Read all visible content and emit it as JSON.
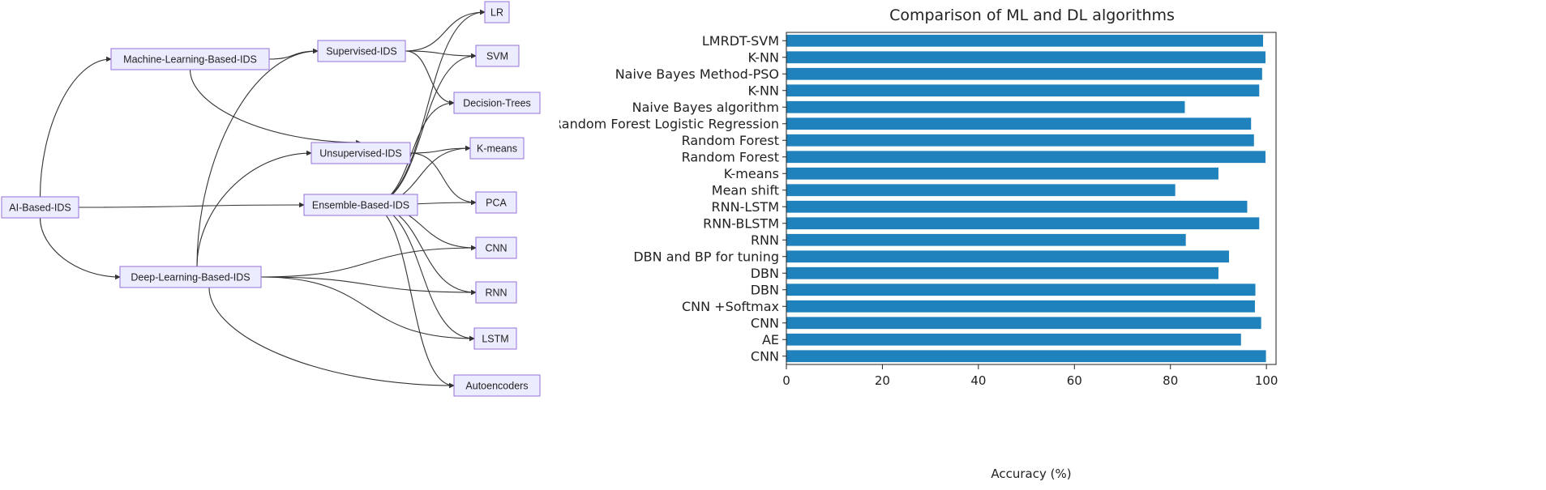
{
  "diagram": {
    "nodes": {
      "ai": "AI-Based-IDS",
      "ml": "Machine-Learning-Based-IDS",
      "dl": "Deep-Learning-Based-IDS",
      "sup": "Supervised-IDS",
      "unsup": "Unsupervised-IDS",
      "ens": "Ensemble-Based-IDS",
      "lr": "LR",
      "svm": "SVM",
      "dt": "Decision-Trees",
      "km": "K-means",
      "pca": "PCA",
      "cnn": "CNN",
      "rnn": "RNN",
      "lstm": "LSTM",
      "ae": "Autoencoders"
    },
    "edges": [
      [
        "ai",
        "ml"
      ],
      [
        "ai",
        "ens"
      ],
      [
        "ai",
        "dl"
      ],
      [
        "ml",
        "sup"
      ],
      [
        "ml",
        "unsup"
      ],
      [
        "dl",
        "sup"
      ],
      [
        "dl",
        "unsup"
      ],
      [
        "dl",
        "cnn"
      ],
      [
        "dl",
        "rnn"
      ],
      [
        "dl",
        "lstm"
      ],
      [
        "dl",
        "ae"
      ],
      [
        "sup",
        "lr"
      ],
      [
        "sup",
        "svm"
      ],
      [
        "sup",
        "dt"
      ],
      [
        "unsup",
        "km"
      ],
      [
        "unsup",
        "pca"
      ],
      [
        "ens",
        "lr"
      ],
      [
        "ens",
        "svm"
      ],
      [
        "ens",
        "dt"
      ],
      [
        "ens",
        "km"
      ],
      [
        "ens",
        "pca"
      ],
      [
        "ens",
        "cnn"
      ],
      [
        "ens",
        "rnn"
      ],
      [
        "ens",
        "lstm"
      ],
      [
        "ens",
        "ae"
      ]
    ]
  },
  "chart_data": {
    "type": "bar",
    "orientation": "horizontal",
    "title": "Comparison of ML and DL algorithms",
    "xlabel": "Accuracy (%)",
    "ylabel": "",
    "xlim": [
      0,
      102
    ],
    "xticks": [
      "0",
      "20",
      "40",
      "60",
      "80",
      "100"
    ],
    "categories": [
      "LMRDT-SVM",
      "K-NN",
      "Naive Bayes Method-PSO",
      "K-NN",
      "Naive Bayes algorithm",
      "Random Forest Logistic Regression",
      "Random Forest",
      "Random Forest",
      "K-means",
      "Mean shift",
      "RNN-LSTM",
      "RNN-BLSTM",
      "RNN",
      "DBN and BP for tuning",
      "DBN",
      "DBN",
      "CNN +Softmax",
      "CNN",
      "AE",
      "CNN"
    ],
    "values": [
      99.3,
      99.8,
      99.1,
      98.5,
      83,
      96.8,
      97.4,
      99.8,
      90,
      81,
      96,
      98.5,
      83.2,
      92.2,
      90,
      97.7,
      97.6,
      98.9,
      94.7,
      99.9
    ],
    "bar_color": "#1f82bd",
    "grid": false
  }
}
